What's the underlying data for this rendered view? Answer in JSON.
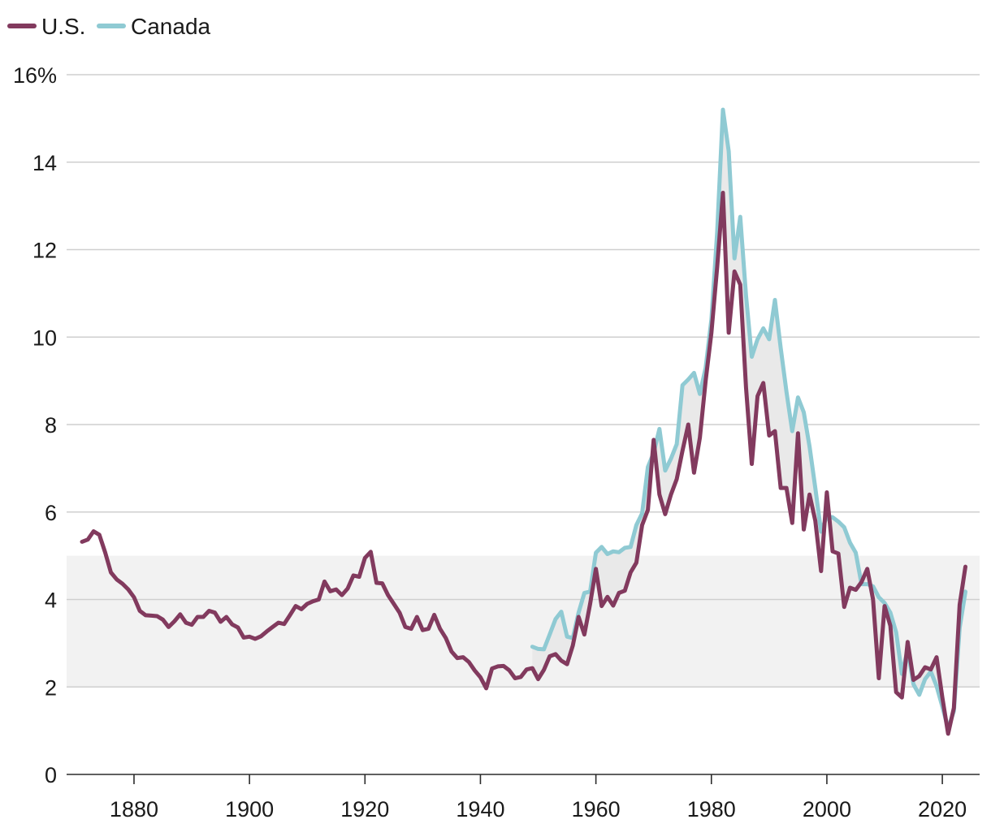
{
  "chart_data": {
    "type": "line",
    "title": "",
    "xlabel": "",
    "ylabel": "",
    "xlim": [
      1871,
      2024
    ],
    "ylim": [
      0,
      16
    ],
    "x_ticks": [
      1880,
      1900,
      1920,
      1940,
      1960,
      1980,
      2000,
      2020
    ],
    "y_ticks": [
      {
        "value": 0,
        "label": "0"
      },
      {
        "value": 2,
        "label": "2"
      },
      {
        "value": 4,
        "label": "4"
      },
      {
        "value": 6,
        "label": "6"
      },
      {
        "value": 8,
        "label": "8"
      },
      {
        "value": 10,
        "label": "10"
      },
      {
        "value": 12,
        "label": "12"
      },
      {
        "value": 14,
        "label": "14"
      },
      {
        "value": 16,
        "label": "16%"
      }
    ],
    "shaded_band": {
      "from": 2,
      "to": 5,
      "color": "#f2f2f2"
    },
    "gap_fill_color": "#e9e9e9",
    "grid": true,
    "legend_position": "top-left",
    "series": [
      {
        "name": "U.S.",
        "color": "#823a5e",
        "points": [
          [
            1871,
            5.32
          ],
          [
            1872,
            5.37
          ],
          [
            1873,
            5.56
          ],
          [
            1874,
            5.48
          ],
          [
            1875,
            5.08
          ],
          [
            1876,
            4.62
          ],
          [
            1877,
            4.46
          ],
          [
            1878,
            4.36
          ],
          [
            1879,
            4.23
          ],
          [
            1880,
            4.05
          ],
          [
            1881,
            3.74
          ],
          [
            1882,
            3.64
          ],
          [
            1883,
            3.63
          ],
          [
            1884,
            3.62
          ],
          [
            1885,
            3.54
          ],
          [
            1886,
            3.37
          ],
          [
            1887,
            3.5
          ],
          [
            1888,
            3.66
          ],
          [
            1889,
            3.47
          ],
          [
            1890,
            3.42
          ],
          [
            1891,
            3.6
          ],
          [
            1892,
            3.6
          ],
          [
            1893,
            3.74
          ],
          [
            1894,
            3.7
          ],
          [
            1895,
            3.49
          ],
          [
            1896,
            3.6
          ],
          [
            1897,
            3.43
          ],
          [
            1898,
            3.36
          ],
          [
            1899,
            3.13
          ],
          [
            1900,
            3.15
          ],
          [
            1901,
            3.1
          ],
          [
            1902,
            3.16
          ],
          [
            1903,
            3.27
          ],
          [
            1904,
            3.37
          ],
          [
            1905,
            3.47
          ],
          [
            1906,
            3.44
          ],
          [
            1907,
            3.64
          ],
          [
            1908,
            3.85
          ],
          [
            1909,
            3.78
          ],
          [
            1910,
            3.9
          ],
          [
            1911,
            3.96
          ],
          [
            1912,
            4.0
          ],
          [
            1913,
            4.41
          ],
          [
            1914,
            4.19
          ],
          [
            1915,
            4.23
          ],
          [
            1916,
            4.1
          ],
          [
            1917,
            4.25
          ],
          [
            1918,
            4.55
          ],
          [
            1919,
            4.52
          ],
          [
            1920,
            4.95
          ],
          [
            1921,
            5.09
          ],
          [
            1922,
            4.38
          ],
          [
            1923,
            4.37
          ],
          [
            1924,
            4.1
          ],
          [
            1925,
            3.9
          ],
          [
            1926,
            3.7
          ],
          [
            1927,
            3.37
          ],
          [
            1928,
            3.33
          ],
          [
            1929,
            3.6
          ],
          [
            1930,
            3.3
          ],
          [
            1931,
            3.33
          ],
          [
            1932,
            3.65
          ],
          [
            1933,
            3.33
          ],
          [
            1934,
            3.12
          ],
          [
            1935,
            2.81
          ],
          [
            1936,
            2.66
          ],
          [
            1937,
            2.68
          ],
          [
            1938,
            2.57
          ],
          [
            1939,
            2.38
          ],
          [
            1940,
            2.22
          ],
          [
            1941,
            1.97
          ],
          [
            1942,
            2.42
          ],
          [
            1943,
            2.47
          ],
          [
            1944,
            2.48
          ],
          [
            1945,
            2.38
          ],
          [
            1946,
            2.2
          ],
          [
            1947,
            2.23
          ],
          [
            1948,
            2.4
          ],
          [
            1949,
            2.43
          ],
          [
            1950,
            2.18
          ],
          [
            1951,
            2.39
          ],
          [
            1952,
            2.7
          ],
          [
            1953,
            2.75
          ],
          [
            1954,
            2.6
          ],
          [
            1955,
            2.52
          ],
          [
            1956,
            2.95
          ],
          [
            1957,
            3.6
          ],
          [
            1958,
            3.2
          ],
          [
            1959,
            3.9
          ],
          [
            1960,
            4.7
          ],
          [
            1961,
            3.85
          ],
          [
            1962,
            4.06
          ],
          [
            1963,
            3.86
          ],
          [
            1964,
            4.15
          ],
          [
            1965,
            4.2
          ],
          [
            1966,
            4.62
          ],
          [
            1967,
            4.84
          ],
          [
            1968,
            5.7
          ],
          [
            1969,
            6.05
          ],
          [
            1970,
            7.65
          ],
          [
            1971,
            6.4
          ],
          [
            1972,
            5.95
          ],
          [
            1973,
            6.4
          ],
          [
            1974,
            6.75
          ],
          [
            1975,
            7.4
          ],
          [
            1976,
            8.0
          ],
          [
            1977,
            6.9
          ],
          [
            1978,
            7.7
          ],
          [
            1979,
            9.0
          ],
          [
            1980,
            10.1
          ],
          [
            1981,
            11.6
          ],
          [
            1982,
            13.3
          ],
          [
            1983,
            10.1
          ],
          [
            1984,
            11.5
          ],
          [
            1985,
            11.2
          ],
          [
            1986,
            8.85
          ],
          [
            1987,
            7.1
          ],
          [
            1988,
            8.65
          ],
          [
            1989,
            8.95
          ],
          [
            1990,
            7.75
          ],
          [
            1991,
            7.85
          ],
          [
            1992,
            6.55
          ],
          [
            1993,
            6.55
          ],
          [
            1994,
            5.75
          ],
          [
            1995,
            7.8
          ],
          [
            1996,
            5.6
          ],
          [
            1997,
            6.4
          ],
          [
            1998,
            5.8
          ],
          [
            1999,
            4.65
          ],
          [
            2000,
            6.45
          ],
          [
            2001,
            5.1
          ],
          [
            2002,
            5.05
          ],
          [
            2003,
            3.83
          ],
          [
            2004,
            4.27
          ],
          [
            2005,
            4.22
          ],
          [
            2006,
            4.4
          ],
          [
            2007,
            4.7
          ],
          [
            2008,
            4.0
          ],
          [
            2009,
            2.2
          ],
          [
            2010,
            3.85
          ],
          [
            2011,
            3.4
          ],
          [
            2012,
            1.88
          ],
          [
            2013,
            1.76
          ],
          [
            2014,
            3.03
          ],
          [
            2015,
            2.16
          ],
          [
            2016,
            2.25
          ],
          [
            2017,
            2.45
          ],
          [
            2018,
            2.4
          ],
          [
            2019,
            2.68
          ],
          [
            2020,
            1.76
          ],
          [
            2021,
            0.93
          ],
          [
            2022,
            1.52
          ],
          [
            2023,
            3.88
          ],
          [
            2024,
            4.75
          ]
        ]
      },
      {
        "name": "Canada",
        "color": "#8fcad3",
        "points": [
          [
            1949,
            2.92
          ],
          [
            1950,
            2.87
          ],
          [
            1951,
            2.86
          ],
          [
            1952,
            3.2
          ],
          [
            1953,
            3.55
          ],
          [
            1954,
            3.72
          ],
          [
            1955,
            3.15
          ],
          [
            1956,
            3.12
          ],
          [
            1957,
            3.7
          ],
          [
            1958,
            4.15
          ],
          [
            1959,
            4.18
          ],
          [
            1960,
            5.07
          ],
          [
            1961,
            5.2
          ],
          [
            1962,
            5.04
          ],
          [
            1963,
            5.1
          ],
          [
            1964,
            5.08
          ],
          [
            1965,
            5.18
          ],
          [
            1966,
            5.2
          ],
          [
            1967,
            5.7
          ],
          [
            1968,
            5.97
          ],
          [
            1969,
            7.03
          ],
          [
            1970,
            7.35
          ],
          [
            1971,
            7.9
          ],
          [
            1972,
            6.95
          ],
          [
            1973,
            7.22
          ],
          [
            1974,
            7.55
          ],
          [
            1975,
            8.9
          ],
          [
            1976,
            9.03
          ],
          [
            1977,
            9.18
          ],
          [
            1978,
            8.7
          ],
          [
            1979,
            9.3
          ],
          [
            1980,
            10.4
          ],
          [
            1981,
            12.4
          ],
          [
            1982,
            15.2
          ],
          [
            1983,
            14.25
          ],
          [
            1984,
            11.8
          ],
          [
            1985,
            12.75
          ],
          [
            1986,
            10.95
          ],
          [
            1987,
            9.55
          ],
          [
            1988,
            9.95
          ],
          [
            1989,
            10.2
          ],
          [
            1990,
            9.95
          ],
          [
            1991,
            10.85
          ],
          [
            1992,
            9.75
          ],
          [
            1993,
            8.75
          ],
          [
            1994,
            7.85
          ],
          [
            1995,
            8.62
          ],
          [
            1996,
            8.28
          ],
          [
            1997,
            7.5
          ],
          [
            1998,
            6.55
          ],
          [
            1999,
            5.55
          ],
          [
            2000,
            5.9
          ],
          [
            2001,
            5.88
          ],
          [
            2002,
            5.78
          ],
          [
            2003,
            5.65
          ],
          [
            2004,
            5.3
          ],
          [
            2005,
            5.07
          ],
          [
            2006,
            4.35
          ],
          [
            2007,
            4.35
          ],
          [
            2008,
            4.3
          ],
          [
            2009,
            4.05
          ],
          [
            2010,
            3.92
          ],
          [
            2011,
            3.7
          ],
          [
            2012,
            3.25
          ],
          [
            2013,
            2.3
          ],
          [
            2014,
            2.85
          ],
          [
            2015,
            2.06
          ],
          [
            2016,
            1.82
          ],
          [
            2017,
            2.18
          ],
          [
            2018,
            2.35
          ],
          [
            2019,
            2.02
          ],
          [
            2020,
            1.55
          ],
          [
            2021,
            1.05
          ],
          [
            2022,
            1.45
          ],
          [
            2023,
            3.35
          ],
          [
            2024,
            4.18
          ]
        ]
      }
    ]
  }
}
